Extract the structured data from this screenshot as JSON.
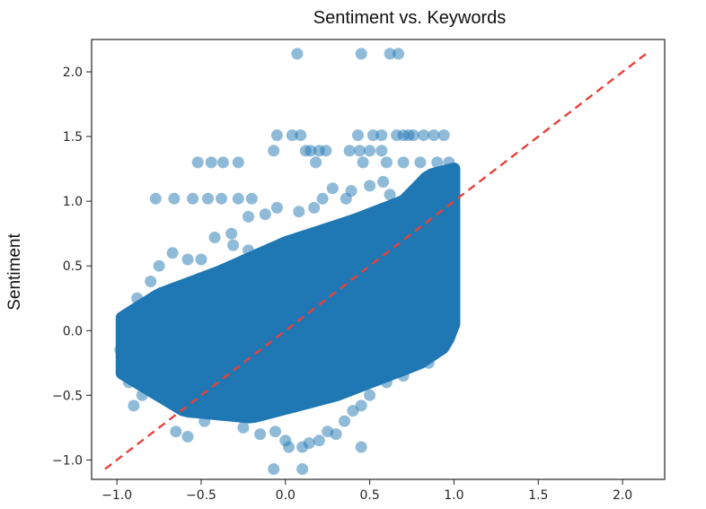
{
  "chart_data": {
    "type": "scatter",
    "title": "Sentiment vs. Keywords",
    "xlabel": "",
    "ylabel": "Sentiment",
    "xlim": [
      -1.15,
      2.25
    ],
    "ylim": [
      -1.15,
      2.25
    ],
    "x_ticks": [
      -1.0,
      -0.5,
      0.0,
      0.5,
      1.0,
      1.5,
      2.0
    ],
    "y_ticks": [
      -1.0,
      -0.5,
      0.0,
      0.5,
      1.0,
      1.5,
      2.0
    ],
    "x_tick_labels": [
      "−1.0",
      "−0.5",
      "0.0",
      "0.5",
      "1.0",
      "1.5",
      "2.0"
    ],
    "y_tick_labels": [
      "−1.0",
      "−0.5",
      "0.0",
      "0.5",
      "1.0",
      "1.5",
      "2.0"
    ],
    "grid": false,
    "legend": "none",
    "marker_color": "#1f77b4",
    "marker_alpha": 0.5,
    "reference_line": {
      "style": "dashed",
      "color": "#e8413a",
      "from": [
        -1.07,
        -1.07
      ],
      "to": [
        2.15,
        2.15
      ]
    },
    "main_cloud": {
      "x_range": [
        -0.97,
        1.0
      ],
      "y_lower": [
        [
          -0.97,
          -0.33
        ],
        [
          -0.6,
          -0.62
        ],
        [
          -0.2,
          -0.67
        ],
        [
          0.3,
          -0.5
        ],
        [
          0.8,
          -0.25
        ],
        [
          0.95,
          -0.12
        ],
        [
          1.0,
          0.05
        ]
      ],
      "y_upper": [
        [
          -0.97,
          0.1
        ],
        [
          -0.75,
          0.28
        ],
        [
          -0.4,
          0.45
        ],
        [
          0.0,
          0.68
        ],
        [
          0.4,
          0.85
        ],
        [
          0.7,
          1.0
        ],
        [
          0.85,
          1.2
        ],
        [
          1.0,
          1.25
        ]
      ]
    },
    "points": [
      {
        "x": 0.07,
        "y": 2.14
      },
      {
        "x": 0.45,
        "y": 2.14
      },
      {
        "x": 0.62,
        "y": 2.14
      },
      {
        "x": 0.67,
        "y": 2.14
      },
      {
        "x": -0.05,
        "y": 1.51
      },
      {
        "x": 0.04,
        "y": 1.51
      },
      {
        "x": 0.09,
        "y": 1.51
      },
      {
        "x": 0.43,
        "y": 1.51
      },
      {
        "x": 0.52,
        "y": 1.51
      },
      {
        "x": 0.57,
        "y": 1.51
      },
      {
        "x": 0.66,
        "y": 1.51
      },
      {
        "x": 0.7,
        "y": 1.51
      },
      {
        "x": 0.73,
        "y": 1.51
      },
      {
        "x": 0.76,
        "y": 1.51
      },
      {
        "x": 0.82,
        "y": 1.51
      },
      {
        "x": 0.88,
        "y": 1.51
      },
      {
        "x": 0.94,
        "y": 1.51
      },
      {
        "x": -0.07,
        "y": 1.39
      },
      {
        "x": 0.12,
        "y": 1.39
      },
      {
        "x": 0.15,
        "y": 1.39
      },
      {
        "x": 0.2,
        "y": 1.39
      },
      {
        "x": 0.24,
        "y": 1.39
      },
      {
        "x": 0.38,
        "y": 1.39
      },
      {
        "x": 0.44,
        "y": 1.39
      },
      {
        "x": 0.5,
        "y": 1.39
      },
      {
        "x": 0.57,
        "y": 1.39
      },
      {
        "x": -0.52,
        "y": 1.3
      },
      {
        "x": -0.44,
        "y": 1.3
      },
      {
        "x": -0.37,
        "y": 1.3
      },
      {
        "x": -0.28,
        "y": 1.3
      },
      {
        "x": 0.18,
        "y": 1.3
      },
      {
        "x": 0.46,
        "y": 1.3
      },
      {
        "x": 0.6,
        "y": 1.3
      },
      {
        "x": 0.7,
        "y": 1.3
      },
      {
        "x": 0.8,
        "y": 1.3
      },
      {
        "x": 0.9,
        "y": 1.3
      },
      {
        "x": 0.97,
        "y": 1.3
      },
      {
        "x": -0.77,
        "y": 1.02
      },
      {
        "x": -0.66,
        "y": 1.02
      },
      {
        "x": -0.55,
        "y": 1.02
      },
      {
        "x": -0.46,
        "y": 1.02
      },
      {
        "x": -0.38,
        "y": 1.02
      },
      {
        "x": -0.28,
        "y": 1.02
      },
      {
        "x": -0.2,
        "y": 1.02
      },
      {
        "x": 0.22,
        "y": 1.02
      },
      {
        "x": 0.36,
        "y": 1.02
      },
      {
        "x": -0.22,
        "y": 0.88
      },
      {
        "x": -0.12,
        "y": 0.9
      },
      {
        "x": -0.05,
        "y": 0.95
      },
      {
        "x": 0.08,
        "y": 0.92
      },
      {
        "x": 0.17,
        "y": 0.95
      },
      {
        "x": 0.28,
        "y": 1.1
      },
      {
        "x": 0.39,
        "y": 1.08
      },
      {
        "x": 0.5,
        "y": 1.12
      },
      {
        "x": 0.58,
        "y": 1.15
      },
      {
        "x": 0.62,
        "y": 1.05
      },
      {
        "x": -0.42,
        "y": 0.72
      },
      {
        "x": -0.32,
        "y": 0.75
      },
      {
        "x": -0.31,
        "y": 0.66
      },
      {
        "x": -0.22,
        "y": 0.62
      },
      {
        "x": -0.67,
        "y": 0.6
      },
      {
        "x": -0.58,
        "y": 0.55
      },
      {
        "x": -0.8,
        "y": 0.38
      },
      {
        "x": -0.95,
        "y": 0.1
      },
      {
        "x": -0.98,
        "y": -0.15
      },
      {
        "x": -0.93,
        "y": -0.4
      },
      {
        "x": -0.85,
        "y": -0.5
      },
      {
        "x": -0.9,
        "y": -0.58
      },
      {
        "x": -0.65,
        "y": -0.78
      },
      {
        "x": -0.58,
        "y": -0.82
      },
      {
        "x": -0.48,
        "y": -0.7
      },
      {
        "x": -0.25,
        "y": -0.75
      },
      {
        "x": -0.15,
        "y": -0.8
      },
      {
        "x": -0.06,
        "y": -0.78
      },
      {
        "x": 0.0,
        "y": -0.85
      },
      {
        "x": 0.02,
        "y": -0.9
      },
      {
        "x": 0.1,
        "y": -0.9
      },
      {
        "x": 0.14,
        "y": -0.87
      },
      {
        "x": 0.2,
        "y": -0.85
      },
      {
        "x": 0.25,
        "y": -0.78
      },
      {
        "x": 0.3,
        "y": -0.8
      },
      {
        "x": 0.35,
        "y": -0.7
      },
      {
        "x": 0.4,
        "y": -0.62
      },
      {
        "x": 0.45,
        "y": -0.58
      },
      {
        "x": 0.5,
        "y": -0.5
      },
      {
        "x": 0.6,
        "y": -0.4
      },
      {
        "x": 0.7,
        "y": -0.35
      },
      {
        "x": 0.85,
        "y": -0.25
      },
      {
        "x": 0.95,
        "y": -0.1
      },
      {
        "x": 0.45,
        "y": -0.9
      },
      {
        "x": -0.07,
        "y": -1.07
      },
      {
        "x": 0.1,
        "y": -1.07
      },
      {
        "x": -0.88,
        "y": 0.25
      },
      {
        "x": -0.75,
        "y": 0.5
      },
      {
        "x": -0.5,
        "y": 0.55
      }
    ]
  }
}
